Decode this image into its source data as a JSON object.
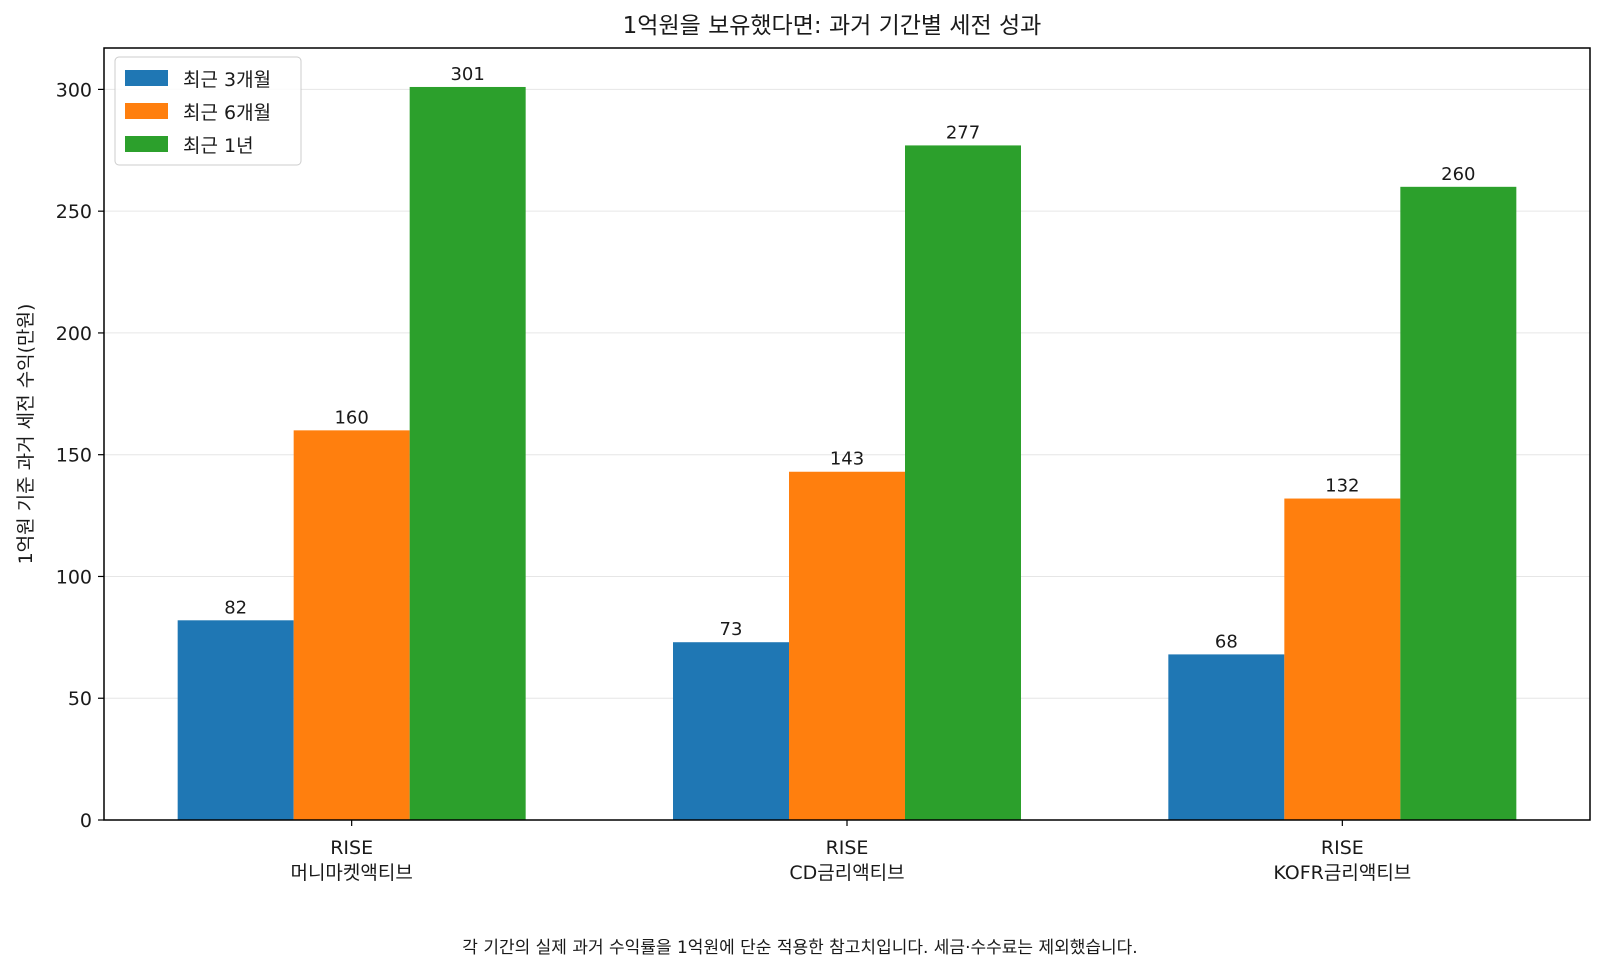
{
  "chart_data": {
    "type": "bar",
    "title": "1억원을 보유했다면: 과거 기간별 세전 성과",
    "xlabel": "",
    "ylabel": "1억원 기준 과거 세전 수익(만원)",
    "categories": [
      [
        "RISE",
        "머니마켓액티브"
      ],
      [
        "RISE",
        "CD금리액티브"
      ],
      [
        "RISE",
        "KOFR금리액티브"
      ]
    ],
    "series": [
      {
        "name": "최근 3개월",
        "color": "#1f77b4",
        "values": [
          82,
          73,
          68
        ]
      },
      {
        "name": "최근 6개월",
        "color": "#ff7f0e",
        "values": [
          160,
          143,
          132
        ]
      },
      {
        "name": "최근 1년",
        "color": "#2ca02c",
        "values": [
          301,
          277,
          260
        ]
      }
    ],
    "ylim": [
      0,
      317
    ],
    "yticks": [
      0,
      50,
      100,
      150,
      200,
      250,
      300
    ],
    "grid": "horizontal",
    "legend_position": "top-left",
    "data_labels": true
  },
  "footnote": "각 기간의 실제 과거 수익률을 1억원에 단순 적용한 참고치입니다. 세금·수수료는 제외했습니다."
}
